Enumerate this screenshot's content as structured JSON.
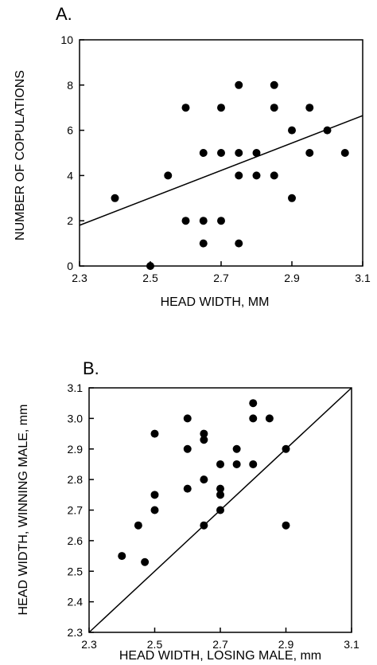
{
  "chart_data": [
    {
      "type": "scatter",
      "panel_label": "A.",
      "xlabel": "HEAD WIDTH, MM",
      "ylabel": "NUMBER OF COPULATIONS",
      "xlim": [
        2.3,
        3.1
      ],
      "ylim": [
        0,
        10
      ],
      "x_ticks": [
        "2.3",
        "2.5",
        "2.7",
        "2.9",
        "3.1"
      ],
      "x_tick_values": [
        2.3,
        2.5,
        2.7,
        2.9,
        3.1
      ],
      "y_ticks": [
        "0",
        "2",
        "4",
        "6",
        "8",
        "10"
      ],
      "y_tick_values": [
        0,
        2,
        4,
        6,
        8,
        10
      ],
      "grid": false,
      "points": [
        {
          "x": 2.4,
          "y": 3
        },
        {
          "x": 2.5,
          "y": 0
        },
        {
          "x": 2.55,
          "y": 4
        },
        {
          "x": 2.6,
          "y": 7
        },
        {
          "x": 2.6,
          "y": 2
        },
        {
          "x": 2.65,
          "y": 5
        },
        {
          "x": 2.65,
          "y": 2
        },
        {
          "x": 2.65,
          "y": 1
        },
        {
          "x": 2.7,
          "y": 7
        },
        {
          "x": 2.7,
          "y": 5
        },
        {
          "x": 2.7,
          "y": 2
        },
        {
          "x": 2.75,
          "y": 8
        },
        {
          "x": 2.75,
          "y": 5
        },
        {
          "x": 2.75,
          "y": 4
        },
        {
          "x": 2.75,
          "y": 1
        },
        {
          "x": 2.8,
          "y": 5
        },
        {
          "x": 2.8,
          "y": 4
        },
        {
          "x": 2.85,
          "y": 8
        },
        {
          "x": 2.85,
          "y": 7
        },
        {
          "x": 2.85,
          "y": 4
        },
        {
          "x": 2.9,
          "y": 6
        },
        {
          "x": 2.9,
          "y": 3
        },
        {
          "x": 2.95,
          "y": 7
        },
        {
          "x": 2.95,
          "y": 5
        },
        {
          "x": 3.0,
          "y": 6
        },
        {
          "x": 3.05,
          "y": 5
        }
      ],
      "line": {
        "x": [
          2.3,
          3.1
        ],
        "y": [
          1.8,
          6.65
        ]
      }
    },
    {
      "type": "scatter",
      "panel_label": "B.",
      "xlabel": "HEAD WIDTH, LOSING MALE, mm",
      "ylabel": "HEAD WIDTH, WINNING MALE, mm",
      "xlim": [
        2.3,
        3.1
      ],
      "ylim": [
        2.3,
        3.1
      ],
      "x_ticks": [
        "2.3",
        "2.5",
        "2.7",
        "2.9",
        "3.1"
      ],
      "x_tick_values": [
        2.3,
        2.5,
        2.7,
        2.9,
        3.1
      ],
      "y_ticks": [
        "2.3",
        "2.4",
        "2.5",
        "2.6",
        "2.7",
        "2.8",
        "2.9",
        "3.0",
        "3.1"
      ],
      "y_tick_values": [
        2.3,
        2.4,
        2.5,
        2.6,
        2.7,
        2.8,
        2.9,
        3.0,
        3.1
      ],
      "grid": false,
      "points": [
        {
          "x": 2.4,
          "y": 2.55
        },
        {
          "x": 2.45,
          "y": 2.65
        },
        {
          "x": 2.47,
          "y": 2.53
        },
        {
          "x": 2.5,
          "y": 2.95
        },
        {
          "x": 2.5,
          "y": 2.75
        },
        {
          "x": 2.5,
          "y": 2.7
        },
        {
          "x": 2.6,
          "y": 3.0
        },
        {
          "x": 2.6,
          "y": 2.9
        },
        {
          "x": 2.6,
          "y": 2.77
        },
        {
          "x": 2.65,
          "y": 2.95
        },
        {
          "x": 2.65,
          "y": 2.93
        },
        {
          "x": 2.65,
          "y": 2.8
        },
        {
          "x": 2.65,
          "y": 2.65
        },
        {
          "x": 2.7,
          "y": 2.85
        },
        {
          "x": 2.7,
          "y": 2.77
        },
        {
          "x": 2.7,
          "y": 2.75
        },
        {
          "x": 2.7,
          "y": 2.7
        },
        {
          "x": 2.75,
          "y": 2.9
        },
        {
          "x": 2.75,
          "y": 2.85
        },
        {
          "x": 2.8,
          "y": 3.05
        },
        {
          "x": 2.8,
          "y": 3.0
        },
        {
          "x": 2.8,
          "y": 2.85
        },
        {
          "x": 2.85,
          "y": 3.0
        },
        {
          "x": 2.9,
          "y": 2.9
        },
        {
          "x": 2.9,
          "y": 2.65
        }
      ],
      "line": {
        "x": [
          2.3,
          3.1
        ],
        "y": [
          2.3,
          3.1
        ]
      }
    }
  ]
}
